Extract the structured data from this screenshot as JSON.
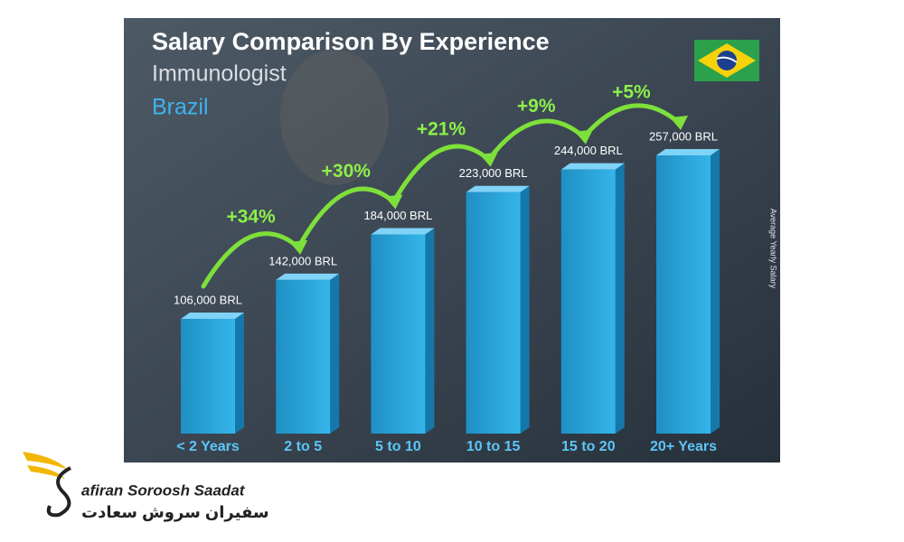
{
  "chart_data": {
    "type": "bar",
    "title": "Salary Comparison By Experience",
    "subtitle": "Immunologist",
    "country": "Brazil",
    "y_label": "Average Yearly Salary",
    "categories": [
      "< 2 Years",
      "2 to 5",
      "5 to 10",
      "10 to 15",
      "15 to 20",
      "20+ Years"
    ],
    "values": [
      106000,
      142000,
      184000,
      223000,
      244000,
      257000
    ],
    "value_labels": [
      "106,000 BRL",
      "142,000 BRL",
      "184,000 BRL",
      "223,000 BRL",
      "244,000 BRL",
      "257,000 BRL"
    ],
    "annotations": [
      "+34%",
      "+30%",
      "+21%",
      "+9%",
      "+5%"
    ],
    "color": "#29a8e0"
  },
  "logo": {
    "name": "afiran Soroosh Saadat",
    "name_fa": "سفیران سروش سعادت"
  }
}
